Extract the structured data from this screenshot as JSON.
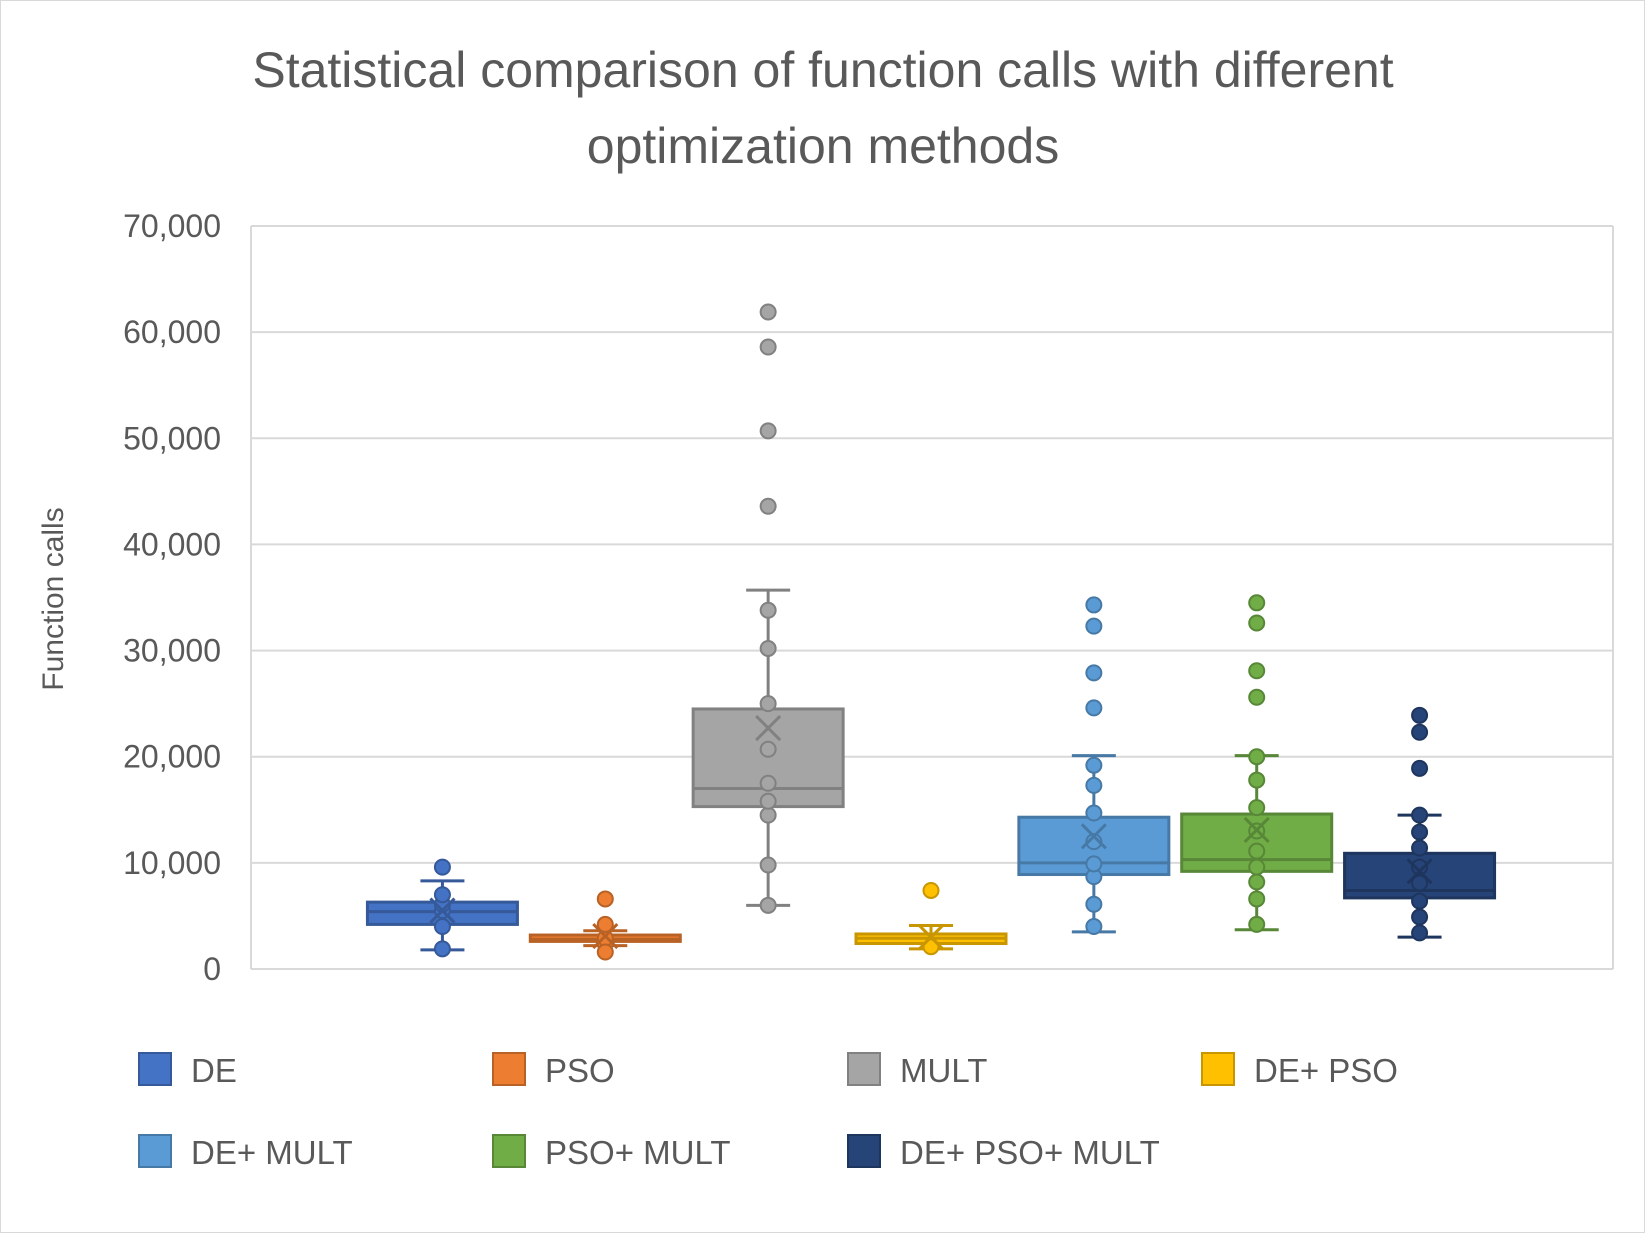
{
  "chart_data": {
    "type": "boxplot",
    "title_lines": [
      "Statistical comparison of function calls with different",
      "optimization methods"
    ],
    "ylabel": "Function calls",
    "xlabel": "",
    "ylim": [
      0,
      70000
    ],
    "yticks": [
      0,
      10000,
      20000,
      30000,
      40000,
      50000,
      60000,
      70000
    ],
    "ytick_labels": [
      "0",
      "10,000",
      "20,000",
      "30,000",
      "40,000",
      "50,000",
      "60,000",
      "70,000"
    ],
    "grid": true,
    "legend_position": "bottom",
    "series": [
      {
        "name": "DE",
        "color": "#4472C4",
        "q1": 4200,
        "median": 5400,
        "q3": 6300,
        "mean": 5500,
        "whisker_low": 1800,
        "whisker_high": 8300,
        "points": [
          1900,
          4000,
          5500,
          6100,
          7000
        ],
        "outliers": [
          9600
        ]
      },
      {
        "name": "PSO",
        "color": "#ED7D31",
        "q1": 2600,
        "median": 2800,
        "q3": 3200,
        "mean": 3100,
        "whisker_low": 2200,
        "whisker_high": 3600,
        "points": [
          2400,
          2900
        ],
        "outliers": [
          1600,
          4200,
          6600
        ]
      },
      {
        "name": "MULT",
        "color": "#A5A5A5",
        "q1": 15300,
        "median": 17000,
        "q3": 24500,
        "mean": 22700,
        "whisker_low": 6000,
        "whisker_high": 35700,
        "points": [
          6000,
          9800,
          14500,
          15800,
          17500,
          20700,
          25000,
          30200,
          33800
        ],
        "outliers": [
          43600,
          50700,
          58600,
          61900
        ]
      },
      {
        "name": "DE+ PSO",
        "color": "#FFC000",
        "q1": 2400,
        "median": 2900,
        "q3": 3300,
        "mean": 3000,
        "whisker_low": 1900,
        "whisker_high": 4100,
        "points": [
          2100
        ],
        "outliers": [
          7400
        ]
      },
      {
        "name": "DE+ MULT",
        "color": "#5B9BD5",
        "q1": 8900,
        "median": 10000,
        "q3": 14300,
        "mean": 12500,
        "whisker_low": 3500,
        "whisker_high": 20100,
        "points": [
          4000,
          6100,
          8700,
          9900,
          12000,
          14700,
          17300,
          19200
        ],
        "outliers": [
          24600,
          27900,
          32300,
          34300
        ]
      },
      {
        "name": "PSO+ MULT",
        "color": "#70AD47",
        "q1": 9200,
        "median": 10300,
        "q3": 14600,
        "mean": 13100,
        "whisker_low": 3700,
        "whisker_high": 20100,
        "points": [
          4200,
          6600,
          8200,
          9600,
          11100,
          13000,
          15200,
          17800,
          20000
        ],
        "outliers": [
          25600,
          28100,
          32600,
          34500
        ]
      },
      {
        "name": "DE+ PSO+ MULT",
        "color": "#264478",
        "q1": 6700,
        "median": 7400,
        "q3": 10900,
        "mean": 9200,
        "whisker_low": 3000,
        "whisker_high": 14500,
        "points": [
          3400,
          4900,
          6400,
          8100,
          9600,
          11400,
          12900,
          14500
        ],
        "outliers": [
          18900,
          22300,
          23900
        ]
      }
    ]
  }
}
